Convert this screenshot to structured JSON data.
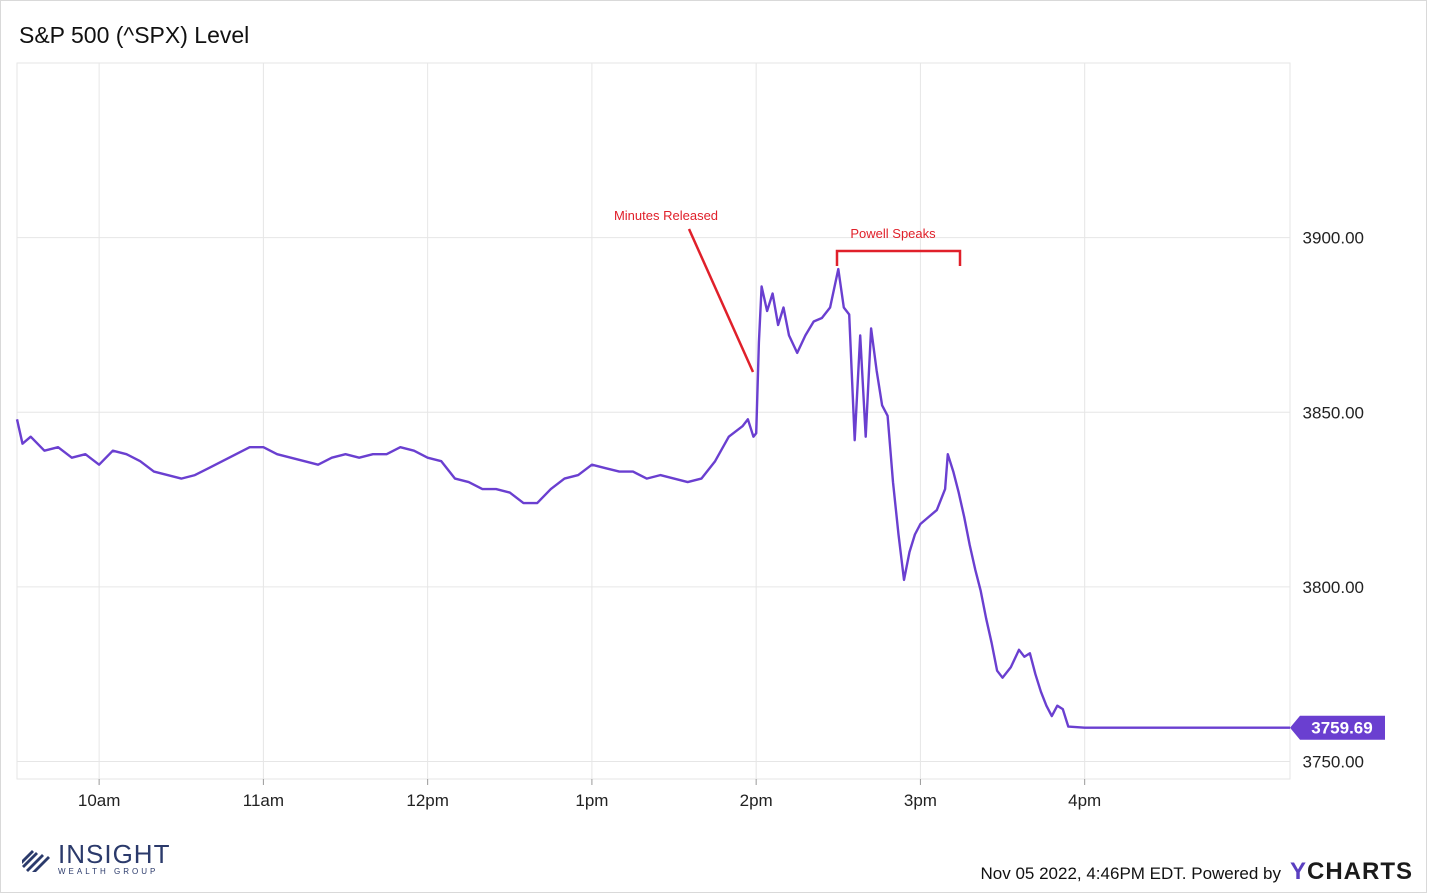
{
  "title": "S&P 500 (^SPX) Level",
  "footer": {
    "timestamp": "Nov 05 2022, 4:46PM EDT. Powered by",
    "brand_y": "Y",
    "brand_rest": "CHARTS"
  },
  "logo": {
    "main": "INSIGHT",
    "sub": "WEALTH GROUP"
  },
  "colors": {
    "line": "#6a3fd0",
    "grid": "#e6e6e6",
    "annotation": "#e0202a",
    "badge": "#6a3fd0"
  },
  "chart_data": {
    "type": "line",
    "title": "S&P 500 (^SPX) Level",
    "xlabel": "",
    "ylabel": "",
    "x_ticks": [
      "10am",
      "11am",
      "12pm",
      "1pm",
      "2pm",
      "3pm",
      "4pm"
    ],
    "y_ticks": [
      "3750.00",
      "3800.00",
      "3850.00",
      "3900.00"
    ],
    "ylim": [
      3745,
      3950
    ],
    "grid": true,
    "last_value_label": "3759.69",
    "annotations": [
      {
        "text": "Minutes Released"
      },
      {
        "text": "Powell Speaks"
      }
    ],
    "series": [
      {
        "points": [
          [
            "9:30",
            3848
          ],
          [
            "9:32",
            3841
          ],
          [
            "9:35",
            3843
          ],
          [
            "9:40",
            3839
          ],
          [
            "9:45",
            3840
          ],
          [
            "9:50",
            3837
          ],
          [
            "9:55",
            3838
          ],
          [
            "10:00",
            3835
          ],
          [
            "10:05",
            3839
          ],
          [
            "10:10",
            3838
          ],
          [
            "10:15",
            3836
          ],
          [
            "10:20",
            3833
          ],
          [
            "10:25",
            3832
          ],
          [
            "10:30",
            3831
          ],
          [
            "10:35",
            3832
          ],
          [
            "10:40",
            3834
          ],
          [
            "10:45",
            3836
          ],
          [
            "10:50",
            3838
          ],
          [
            "10:55",
            3840
          ],
          [
            "11:00",
            3840
          ],
          [
            "11:05",
            3838
          ],
          [
            "11:10",
            3837
          ],
          [
            "11:15",
            3836
          ],
          [
            "11:20",
            3835
          ],
          [
            "11:25",
            3837
          ],
          [
            "11:30",
            3838
          ],
          [
            "11:35",
            3837
          ],
          [
            "11:40",
            3838
          ],
          [
            "11:45",
            3838
          ],
          [
            "11:50",
            3840
          ],
          [
            "11:55",
            3839
          ],
          [
            "12:00",
            3837
          ],
          [
            "12:05",
            3836
          ],
          [
            "12:10",
            3831
          ],
          [
            "12:15",
            3830
          ],
          [
            "12:20",
            3828
          ],
          [
            "12:25",
            3828
          ],
          [
            "12:30",
            3827
          ],
          [
            "12:35",
            3824
          ],
          [
            "12:40",
            3824
          ],
          [
            "12:45",
            3828
          ],
          [
            "12:50",
            3831
          ],
          [
            "12:55",
            3832
          ],
          [
            "13:00",
            3835
          ],
          [
            "13:05",
            3834
          ],
          [
            "13:10",
            3833
          ],
          [
            "13:15",
            3833
          ],
          [
            "13:20",
            3831
          ],
          [
            "13:25",
            3832
          ],
          [
            "13:30",
            3831
          ],
          [
            "13:35",
            3830
          ],
          [
            "13:40",
            3831
          ],
          [
            "13:45",
            3836
          ],
          [
            "13:50",
            3843
          ],
          [
            "13:55",
            3846
          ],
          [
            "13:57",
            3848
          ],
          [
            "13:59",
            3843
          ],
          [
            "14:00",
            3844
          ],
          [
            "14:01",
            3870
          ],
          [
            "14:02",
            3886
          ],
          [
            "14:04",
            3879
          ],
          [
            "14:06",
            3884
          ],
          [
            "14:08",
            3875
          ],
          [
            "14:10",
            3880
          ],
          [
            "14:12",
            3872
          ],
          [
            "14:15",
            3867
          ],
          [
            "14:18",
            3872
          ],
          [
            "14:21",
            3876
          ],
          [
            "14:24",
            3877
          ],
          [
            "14:27",
            3880
          ],
          [
            "14:30",
            3891
          ],
          [
            "14:32",
            3880
          ],
          [
            "14:34",
            3878
          ],
          [
            "14:36",
            3842
          ],
          [
            "14:38",
            3872
          ],
          [
            "14:40",
            3843
          ],
          [
            "14:42",
            3874
          ],
          [
            "14:44",
            3862
          ],
          [
            "14:46",
            3852
          ],
          [
            "14:48",
            3849
          ],
          [
            "14:50",
            3830
          ],
          [
            "14:52",
            3815
          ],
          [
            "14:54",
            3802
          ],
          [
            "14:56",
            3810
          ],
          [
            "14:58",
            3815
          ],
          [
            "15:00",
            3818
          ],
          [
            "15:03",
            3820
          ],
          [
            "15:06",
            3822
          ],
          [
            "15:09",
            3828
          ],
          [
            "15:10",
            3838
          ],
          [
            "15:12",
            3833
          ],
          [
            "15:14",
            3827
          ],
          [
            "15:16",
            3820
          ],
          [
            "15:18",
            3812
          ],
          [
            "15:20",
            3805
          ],
          [
            "15:22",
            3799
          ],
          [
            "15:24",
            3791
          ],
          [
            "15:26",
            3784
          ],
          [
            "15:28",
            3776
          ],
          [
            "15:30",
            3774
          ],
          [
            "15:33",
            3777
          ],
          [
            "15:36",
            3782
          ],
          [
            "15:38",
            3780
          ],
          [
            "15:40",
            3781
          ],
          [
            "15:42",
            3775
          ],
          [
            "15:44",
            3770
          ],
          [
            "15:46",
            3766
          ],
          [
            "15:48",
            3763
          ],
          [
            "15:50",
            3766
          ],
          [
            "15:52",
            3765
          ],
          [
            "15:54",
            3760
          ],
          [
            "16:00",
            3759.69
          ],
          [
            "16:30",
            3759.69
          ],
          [
            "17:00",
            3759.69
          ],
          [
            "17:15",
            3759.69
          ]
        ]
      }
    ]
  }
}
